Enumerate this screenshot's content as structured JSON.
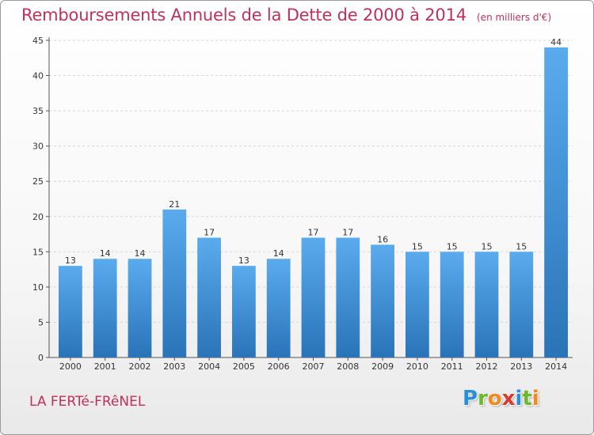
{
  "header": {
    "title": "Remboursements Annuels de la Dette de 2000 à 2014",
    "unit": "(en milliers d'€)"
  },
  "footer": {
    "commune": "LA FERTé-FRêNEL",
    "logo_letters": [
      "P",
      "r",
      "o",
      "x",
      "i",
      "t",
      "i"
    ],
    "logo_colors": [
      "#2a8fd6",
      "#6bb82f",
      "#f08a1c",
      "#d83a2e",
      "#2a8fd6",
      "#6bb82f",
      "#f08a1c"
    ]
  },
  "chart_data": {
    "type": "bar",
    "title": "Remboursements Annuels de la Dette de 2000 à 2014",
    "categories": [
      "2000",
      "2001",
      "2002",
      "2003",
      "2004",
      "2005",
      "2006",
      "2007",
      "2008",
      "2009",
      "2010",
      "2011",
      "2012",
      "2013",
      "2014"
    ],
    "values": [
      13,
      14,
      14,
      21,
      17,
      13,
      14,
      17,
      17,
      16,
      15,
      15,
      15,
      15,
      44
    ],
    "ylim": [
      0,
      45
    ],
    "yticks": [
      0,
      5,
      10,
      15,
      20,
      25,
      30,
      35,
      40,
      45
    ],
    "grid": true,
    "bar_color_top": "#5aabee",
    "bar_color_bottom": "#2a73b8"
  }
}
